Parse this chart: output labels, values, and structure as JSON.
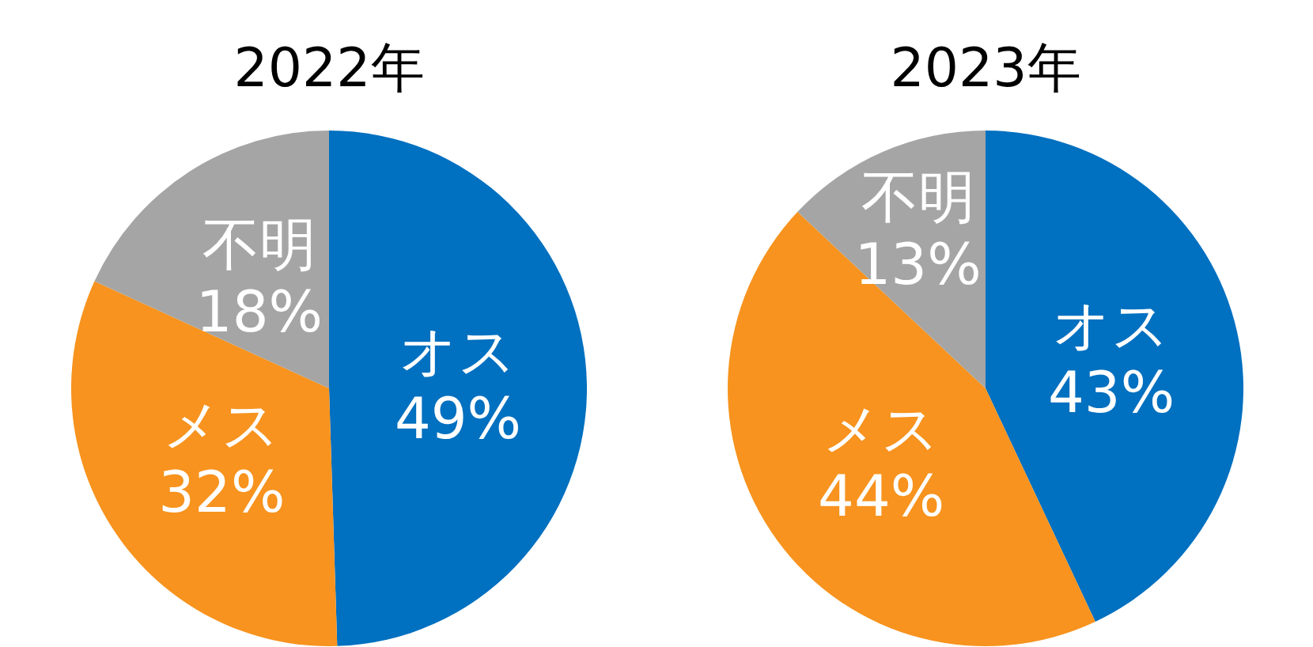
{
  "chart_data": [
    {
      "type": "pie",
      "title": "2022年",
      "categories": [
        "オス",
        "メス",
        "不明"
      ],
      "values": [
        49,
        32,
        18
      ],
      "colors": [
        "#0070c0",
        "#f7931e",
        "#a5a5a5"
      ],
      "value_labels": [
        "49%",
        "32%",
        "18%"
      ]
    },
    {
      "type": "pie",
      "title": "2023年",
      "categories": [
        "オス",
        "メス",
        "不明"
      ],
      "values": [
        43,
        44,
        13
      ],
      "colors": [
        "#0070c0",
        "#f7931e",
        "#a5a5a5"
      ],
      "value_labels": [
        "43%",
        "44%",
        "13%"
      ]
    }
  ]
}
